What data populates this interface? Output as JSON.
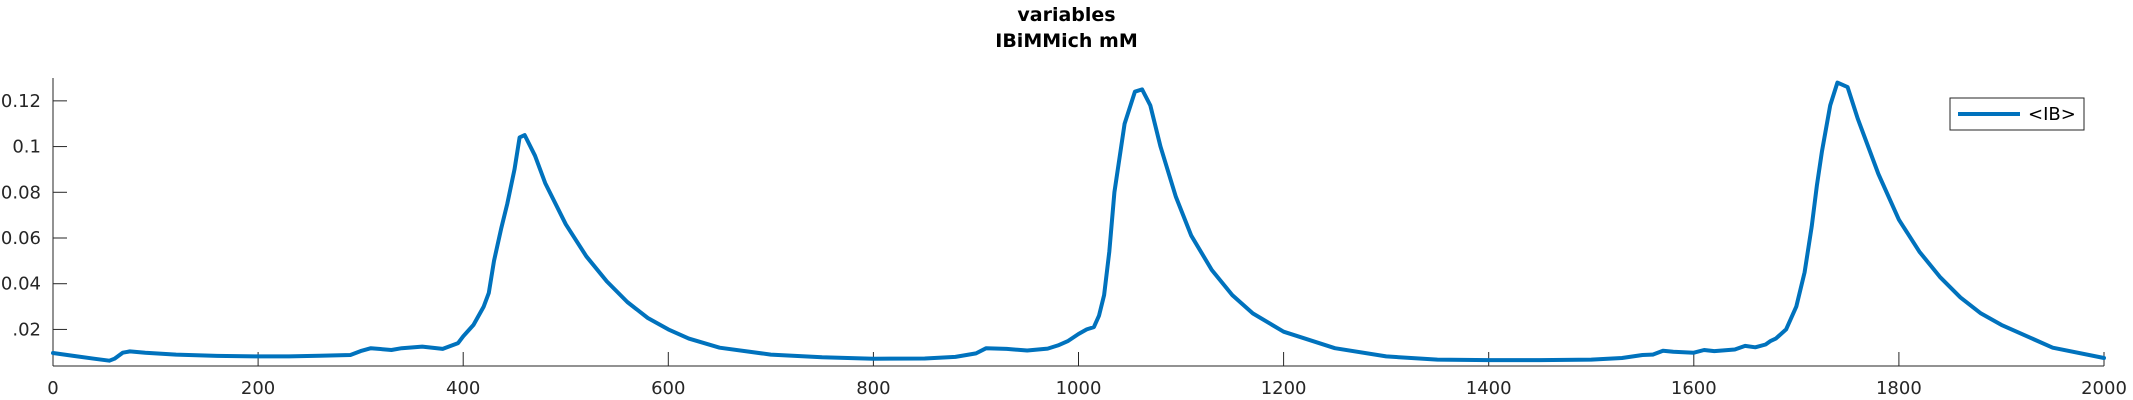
{
  "chart_data": {
    "type": "line",
    "title": "variables",
    "subtitle": "IBiMMich mM",
    "xlabel": "",
    "ylabel": "",
    "xlim": [
      0,
      2000
    ],
    "ylim": [
      0.004,
      0.13
    ],
    "x_ticks": [
      0,
      200,
      400,
      600,
      800,
      1000,
      1200,
      1400,
      1600,
      1800,
      2000
    ],
    "x_tick_labels": [
      "0",
      "200",
      "400",
      "600",
      "800",
      "1000",
      "1200",
      "1400",
      "1600",
      "1800",
      "2000"
    ],
    "y_ticks": [
      0.02,
      0.04,
      0.06,
      0.08,
      0.1,
      0.12
    ],
    "y_tick_labels": [
      ".02",
      "0.04",
      "0.06",
      "0.08",
      "0.1",
      "0.12"
    ],
    "grid": false,
    "legend_position": "top-right",
    "series": [
      {
        "name": "<IB>",
        "color": "#0072BD",
        "x": [
          0,
          20,
          40,
          55,
          60,
          68,
          75,
          90,
          120,
          160,
          200,
          230,
          260,
          290,
          300,
          310,
          330,
          340,
          360,
          380,
          395,
          400,
          410,
          420,
          425,
          430,
          437,
          443,
          450,
          455,
          460,
          470,
          480,
          500,
          520,
          540,
          560,
          580,
          600,
          620,
          650,
          700,
          750,
          800,
          850,
          880,
          900,
          910,
          930,
          950,
          970,
          980,
          990,
          1000,
          1008,
          1015,
          1020,
          1025,
          1030,
          1035,
          1045,
          1055,
          1062,
          1070,
          1080,
          1095,
          1110,
          1130,
          1150,
          1170,
          1200,
          1250,
          1300,
          1350,
          1400,
          1450,
          1500,
          1530,
          1550,
          1560,
          1570,
          1580,
          1600,
          1610,
          1620,
          1640,
          1650,
          1660,
          1670,
          1675,
          1680,
          1690,
          1700,
          1708,
          1715,
          1720,
          1725,
          1733,
          1740,
          1750,
          1760,
          1780,
          1800,
          1820,
          1840,
          1860,
          1880,
          1900,
          1950,
          2000
        ],
        "values": [
          0.0097,
          0.0084,
          0.0072,
          0.0063,
          0.0072,
          0.0098,
          0.0104,
          0.0098,
          0.009,
          0.0084,
          0.0082,
          0.0082,
          0.0085,
          0.0088,
          0.0105,
          0.0118,
          0.011,
          0.0118,
          0.0125,
          0.0115,
          0.014,
          0.017,
          0.022,
          0.03,
          0.036,
          0.05,
          0.064,
          0.075,
          0.09,
          0.104,
          0.105,
          0.096,
          0.084,
          0.066,
          0.052,
          0.041,
          0.032,
          0.025,
          0.02,
          0.016,
          0.012,
          0.009,
          0.0078,
          0.0072,
          0.0073,
          0.008,
          0.0095,
          0.0118,
          0.0115,
          0.0108,
          0.0116,
          0.013,
          0.015,
          0.018,
          0.02,
          0.021,
          0.026,
          0.035,
          0.054,
          0.08,
          0.11,
          0.124,
          0.125,
          0.118,
          0.1,
          0.078,
          0.061,
          0.046,
          0.035,
          0.027,
          0.019,
          0.0118,
          0.0082,
          0.0068,
          0.0066,
          0.0066,
          0.0068,
          0.0075,
          0.0088,
          0.009,
          0.0107,
          0.0102,
          0.0098,
          0.011,
          0.0105,
          0.0112,
          0.0128,
          0.0122,
          0.0134,
          0.015,
          0.016,
          0.02,
          0.03,
          0.045,
          0.065,
          0.083,
          0.098,
          0.118,
          0.128,
          0.126,
          0.112,
          0.088,
          0.068,
          0.054,
          0.043,
          0.034,
          0.027,
          0.022,
          0.012,
          0.0075
        ]
      }
    ]
  }
}
